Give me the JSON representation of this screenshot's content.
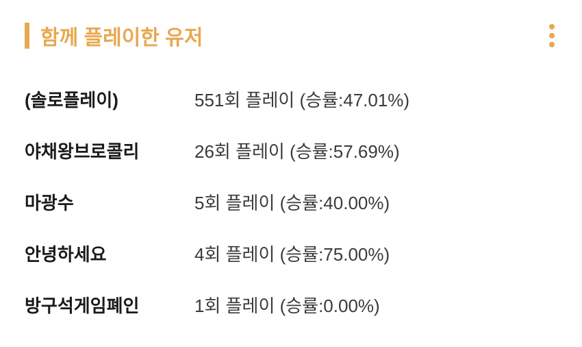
{
  "header": {
    "title": "함께 플레이한 유저",
    "accent_color": "#e8a84f"
  },
  "players": [
    {
      "name": "(솔로플레이)",
      "plays": 551,
      "win_rate": "47.01",
      "text": "551회 플레이 (승률:47.01%)"
    },
    {
      "name": "야채왕브로콜리",
      "plays": 26,
      "win_rate": "57.69",
      "text": "26회 플레이 (승률:57.69%)"
    },
    {
      "name": "마광수",
      "plays": 5,
      "win_rate": "40.00",
      "text": "5회 플레이 (승률:40.00%)"
    },
    {
      "name": "안녕하세요",
      "plays": 4,
      "win_rate": "75.00",
      "text": "4회 플레이 (승률:75.00%)"
    },
    {
      "name": "방구석게임폐인",
      "plays": 1,
      "win_rate": "0.00",
      "text": "1회 플레이 (승률:0.00%)"
    }
  ]
}
